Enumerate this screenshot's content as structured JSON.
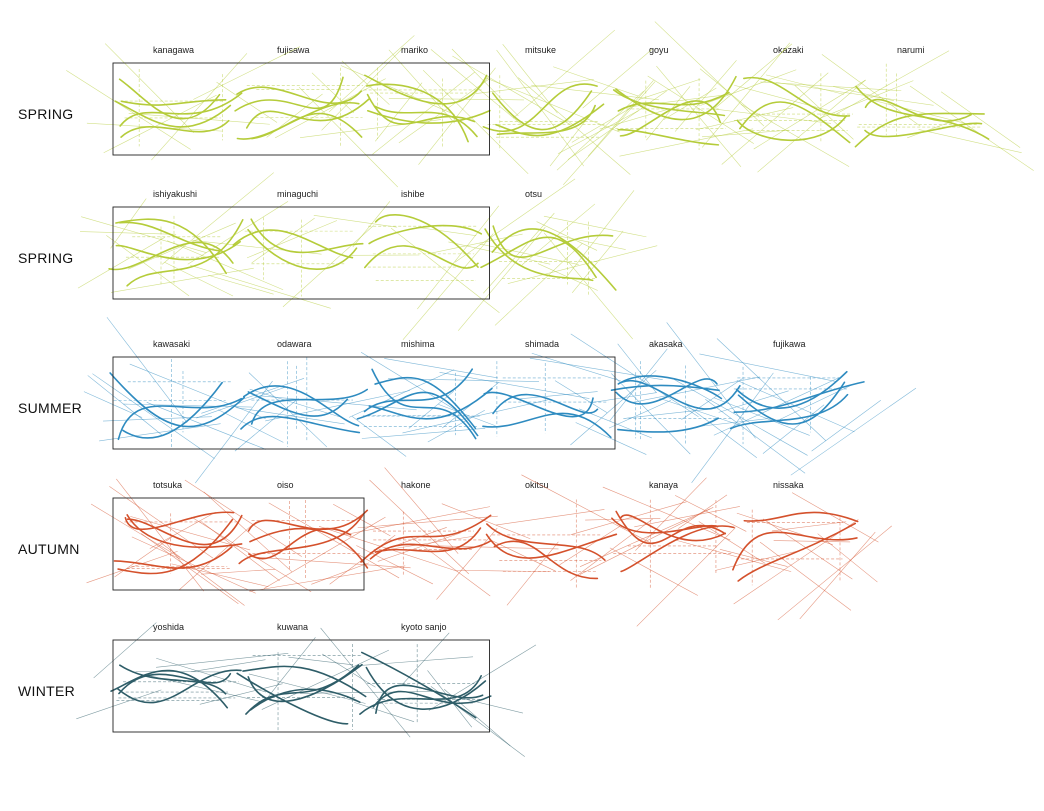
{
  "rows": [
    {
      "season": "SPRING",
      "color": "#b5cc3a",
      "stops": [
        "kanagawa",
        "fujisawa",
        "mariko",
        "mitsuke",
        "goyu",
        "okazaki",
        "narumi"
      ]
    },
    {
      "season": "SPRING",
      "color": "#b5cc3a",
      "stops": [
        "ishiyakushi",
        "minaguchi",
        "ishibe",
        "otsu"
      ]
    },
    {
      "season": "SUMMER",
      "color": "#2e8bc0",
      "stops": [
        "kawasaki",
        "odawara",
        "mishima",
        "shimada",
        "akasaka",
        "fujikawa"
      ]
    },
    {
      "season": "AUTUMN",
      "color": "#d4512c",
      "stops": [
        "totsuka",
        "oiso",
        "hakone",
        "okitsu",
        "kanaya",
        "nissaka"
      ]
    },
    {
      "season": "WINTER",
      "color": "#2e5d68",
      "stops": [
        "yoshida",
        "kuwana",
        "kyoto sanjo"
      ]
    }
  ]
}
